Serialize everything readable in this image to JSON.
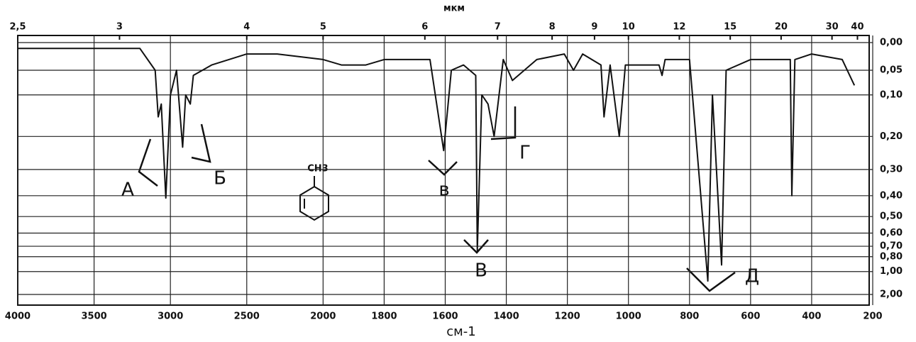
{
  "chart_data": {
    "type": "line",
    "top_axis_label": "мкм",
    "x_label": "см-1",
    "xlim": [
      4000,
      200
    ],
    "x_scale": {
      "break": 2000,
      "ratio": 2
    },
    "xticks": [
      4000,
      3500,
      3000,
      2500,
      2000,
      1800,
      1600,
      1400,
      1200,
      1000,
      800,
      600,
      400,
      200
    ],
    "top_ticks": [
      {
        "value": 2.5,
        "label": "2,5"
      },
      3,
      4,
      5,
      6,
      7,
      8,
      9,
      10,
      12,
      15,
      20,
      30,
      40
    ],
    "yscale": "absorbance",
    "ylim": [
      0,
      2
    ],
    "yticks": [
      {
        "value": 0,
        "label": "0,00"
      },
      {
        "value": 0.05,
        "label": "0,05"
      },
      {
        "value": 0.1,
        "label": "0,10"
      },
      {
        "value": 0.2,
        "label": "0,20"
      },
      {
        "value": 0.3,
        "label": "0,30"
      },
      {
        "value": 0.4,
        "label": "0,40"
      },
      {
        "value": 0.5,
        "label": "0,50"
      },
      {
        "value": 0.6,
        "label": "0,60"
      },
      {
        "value": 0.7,
        "label": "0,70"
      },
      {
        "value": 0.8,
        "label": "0,80"
      },
      {
        "value": 1,
        "label": "1,00"
      },
      {
        "value": 2,
        "label": "2,00"
      }
    ],
    "grid": true,
    "series": [
      {
        "color": "#111111",
        "x": [
          4000,
          3500,
          3200,
          3100,
          3080,
          3060,
          3030,
          3000,
          2960,
          2920,
          2900,
          2870,
          2850,
          2730,
          2500,
          2300,
          2000,
          1940,
          1860,
          1800,
          1730,
          1650,
          1605,
          1580,
          1540,
          1500,
          1495,
          1480,
          1460,
          1440,
          1410,
          1380,
          1300,
          1210,
          1180,
          1150,
          1090,
          1080,
          1060,
          1030,
          1010,
          900,
          890,
          880,
          800,
          740,
          725,
          695,
          680,
          600,
          470,
          465,
          455,
          400,
          300,
          260
        ],
        "values": [
          0.01,
          0.01,
          0.01,
          0.05,
          0.15,
          0.12,
          0.41,
          0.1,
          0.05,
          0.23,
          0.1,
          0.12,
          0.06,
          0.04,
          0.02,
          0.02,
          0.03,
          0.04,
          0.04,
          0.03,
          0.03,
          0.03,
          0.24,
          0.05,
          0.04,
          0.06,
          0.74,
          0.1,
          0.12,
          0.2,
          0.03,
          0.07,
          0.03,
          0.02,
          0.05,
          0.02,
          0.04,
          0.15,
          0.04,
          0.2,
          0.04,
          0.04,
          0.06,
          0.03,
          0.03,
          1.2,
          0.1,
          0.9,
          0.05,
          0.03,
          0.03,
          0.4,
          0.03,
          0.02,
          0.03,
          0.08
        ]
      }
    ],
    "formula": "CH3",
    "annotations": [
      "А",
      "Б",
      "в",
      "В",
      "Г",
      "Д"
    ]
  }
}
